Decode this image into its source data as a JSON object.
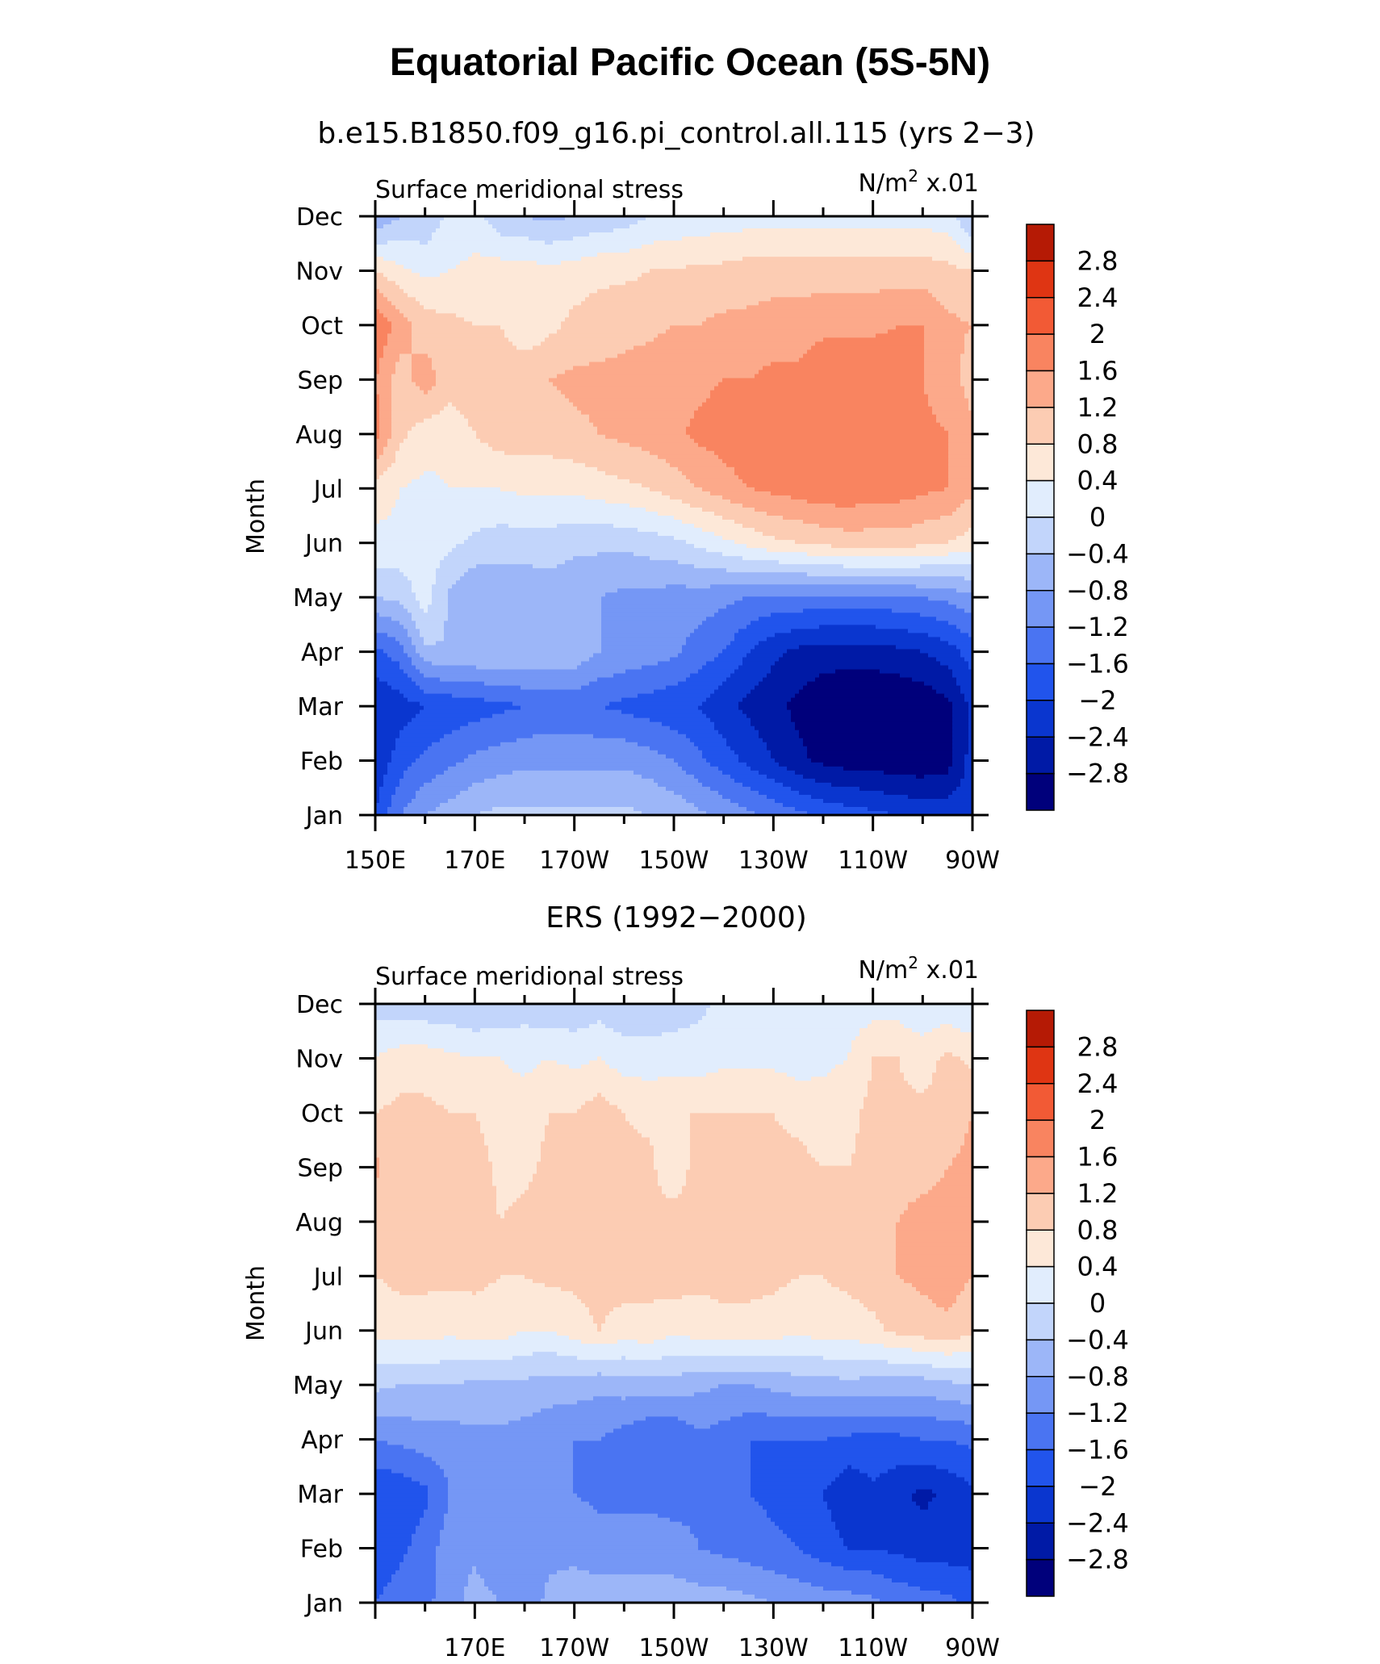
{
  "title": "Equatorial Pacific Ocean (5S-5N)",
  "colorbar": {
    "labels": [
      "2.8",
      "2.4",
      "2",
      "1.6",
      "1.2",
      "0.8",
      "0.4",
      "0",
      "−0.4",
      "−0.8",
      "−1.2",
      "−1.6",
      "−2",
      "−2.4",
      "−2.8"
    ],
    "levels": [
      -2.8,
      -2.4,
      -2.0,
      -1.6,
      -1.2,
      -0.8,
      -0.4,
      0,
      0.4,
      0.8,
      1.2,
      1.6,
      2.0,
      2.4,
      2.8
    ],
    "colors": [
      "#00007b",
      "#001aa6",
      "#0a36cf",
      "#2154ec",
      "#4a74f2",
      "#7597f5",
      "#9cb6f8",
      "#c2d5fb",
      "#e1edfd",
      "#fde8d8",
      "#fcccb3",
      "#fca98a",
      "#f98460",
      "#f25a35",
      "#df3513",
      "#b51a05"
    ]
  },
  "panels": [
    {
      "subtitle": "b.e15.B1850.f09_g16.pi_control.all.115 (yrs 2−3)",
      "left_label": "Surface meridional stress",
      "right_label": "N/m",
      "right_sup": "2",
      "right_suffix": " x.01"
    },
    {
      "subtitle": "ERS (1992−2000)",
      "left_label": "Surface meridional stress",
      "right_label": "N/m",
      "right_sup": "2",
      "right_suffix": " x.01"
    }
  ],
  "chart_data": [
    {
      "type": "heatmap",
      "title": "b.e15.B1850.f09_g16.pi_control.all.115 (yrs 2−3)",
      "ylabel": "Month",
      "xlabel": "",
      "x_ticklabels": [
        "150E",
        "170E",
        "170W",
        "150W",
        "130W",
        "110W",
        "90W"
      ],
      "y_ticklabels": [
        "Jan",
        "Feb",
        "Mar",
        "Apr",
        "May",
        "Jun",
        "Jul",
        "Aug",
        "Sep",
        "Oct",
        "Nov",
        "Dec"
      ],
      "x_range": [
        150,
        270
      ],
      "x": [
        150,
        155,
        160,
        165,
        170,
        175,
        180,
        185,
        190,
        195,
        200,
        205,
        210,
        215,
        220,
        225,
        230,
        235,
        240,
        245,
        250,
        255,
        260,
        265,
        270
      ],
      "y": [
        "Jan",
        "Feb",
        "Mar",
        "Apr",
        "May",
        "Jun",
        "Jul",
        "Aug",
        "Sep",
        "Oct",
        "Nov",
        "Dec"
      ],
      "units": "N/m2 x.01",
      "z": [
        [
          -2.0,
          -1.2,
          -0.8,
          -0.6,
          -0.4,
          -0.3,
          -0.3,
          -0.3,
          -0.3,
          -0.3,
          -0.3,
          -0.4,
          -0.5,
          -0.7,
          -0.9,
          -1.1,
          -1.3,
          -1.5,
          -1.7,
          -1.8,
          -1.9,
          -2.0,
          -2.1,
          -2.1,
          -2.2
        ],
        [
          -2.3,
          -1.8,
          -1.5,
          -1.3,
          -1.1,
          -1.0,
          -0.9,
          -0.9,
          -0.9,
          -0.9,
          -0.9,
          -1.0,
          -1.2,
          -1.5,
          -1.8,
          -2.1,
          -2.4,
          -2.7,
          -2.9,
          -3.0,
          -3.0,
          -3.1,
          -3.1,
          -3.0,
          -2.2
        ],
        [
          -2.4,
          -2.2,
          -2.0,
          -1.9,
          -1.8,
          -1.7,
          -1.6,
          -1.5,
          -1.5,
          -1.6,
          -1.7,
          -1.8,
          -1.9,
          -2.0,
          -2.3,
          -2.5,
          -2.7,
          -2.9,
          -3.1,
          -3.2,
          -3.2,
          -3.2,
          -3.1,
          -2.9,
          -2.3
        ],
        [
          -1.7,
          -1.4,
          -0.5,
          -0.4,
          -0.4,
          -0.4,
          -0.4,
          -0.4,
          -0.5,
          -0.8,
          -0.9,
          -1.0,
          -1.1,
          -1.4,
          -1.6,
          -2.0,
          -2.3,
          -2.5,
          -2.6,
          -2.6,
          -2.6,
          -2.5,
          -2.4,
          -2.2,
          -1.8
        ],
        [
          -0.4,
          -0.3,
          0.2,
          -0.5,
          -0.8,
          -0.7,
          -0.7,
          -0.6,
          -0.7,
          -0.8,
          -0.9,
          -0.9,
          -1.0,
          -1.0,
          -1.1,
          -1.2,
          -1.3,
          -1.3,
          -1.3,
          -1.3,
          -1.3,
          -1.3,
          -1.2,
          -1.1,
          -0.9
        ],
        [
          0.3,
          0.3,
          0.2,
          0.1,
          -0.1,
          -0.2,
          -0.2,
          -0.2,
          -0.3,
          -0.3,
          -0.3,
          -0.2,
          -0.1,
          0.1,
          0.3,
          0.5,
          0.7,
          0.8,
          0.9,
          1.0,
          1.0,
          1.0,
          0.9,
          0.8,
          0.6
        ],
        [
          0.6,
          0.4,
          0.3,
          0.4,
          0.4,
          0.4,
          0.5,
          0.5,
          0.5,
          0.6,
          0.7,
          0.8,
          1.0,
          1.2,
          1.4,
          1.6,
          1.7,
          1.8,
          1.9,
          1.9,
          1.8,
          1.8,
          1.7,
          1.6,
          1.3
        ],
        [
          1.8,
          0.9,
          0.6,
          0.5,
          0.8,
          1.0,
          1.0,
          1.0,
          1.1,
          1.2,
          1.3,
          1.4,
          1.5,
          1.7,
          1.8,
          1.9,
          1.9,
          1.9,
          1.8,
          1.8,
          1.7,
          1.7,
          1.7,
          1.6,
          1.3
        ],
        [
          1.6,
          1.0,
          1.4,
          1.0,
          1.1,
          1.2,
          1.2,
          1.2,
          1.3,
          1.3,
          1.3,
          1.4,
          1.5,
          1.5,
          1.6,
          1.6,
          1.7,
          1.7,
          1.9,
          2.0,
          2.0,
          1.8,
          1.6,
          1.4,
          1.0
        ],
        [
          2.0,
          1.4,
          1.0,
          0.9,
          0.8,
          0.8,
          0.4,
          0.7,
          0.9,
          1.0,
          1.1,
          1.1,
          1.2,
          1.2,
          1.3,
          1.3,
          1.4,
          1.4,
          1.5,
          1.5,
          1.5,
          1.6,
          1.6,
          1.3,
          1.2
        ],
        [
          0.8,
          0.5,
          0.3,
          0.4,
          0.5,
          0.6,
          0.6,
          0.5,
          0.6,
          0.7,
          0.7,
          0.8,
          0.8,
          0.9,
          0.9,
          1.0,
          1.0,
          1.0,
          1.0,
          1.0,
          1.0,
          1.0,
          1.0,
          0.9,
          0.8
        ],
        [
          -0.8,
          -0.4,
          -0.3,
          0.1,
          0.2,
          -0.3,
          -0.4,
          -0.5,
          -0.4,
          -0.3,
          -0.2,
          0.0,
          0.1,
          0.1,
          0.2,
          0.2,
          0.2,
          0.2,
          0.2,
          0.2,
          0.2,
          0.2,
          0.2,
          0.2,
          -0.5
        ]
      ]
    },
    {
      "type": "heatmap",
      "title": "ERS (1992−2000)",
      "ylabel": "Month",
      "xlabel": "",
      "x_ticklabels": [
        "170E",
        "170W",
        "150W",
        "130W",
        "110W",
        "90W"
      ],
      "y_ticklabels": [
        "Jan",
        "Feb",
        "Mar",
        "Apr",
        "May",
        "Jun",
        "Jul",
        "Aug",
        "Sep",
        "Oct",
        "Nov",
        "Dec"
      ],
      "x_range": [
        150,
        270
      ],
      "x": [
        150,
        155,
        160,
        165,
        170,
        175,
        180,
        185,
        190,
        195,
        200,
        205,
        210,
        215,
        220,
        225,
        230,
        235,
        240,
        245,
        250,
        255,
        260,
        265,
        270
      ],
      "y": [
        "Jan",
        "Feb",
        "Mar",
        "Apr",
        "May",
        "Jun",
        "Jul",
        "Aug",
        "Sep",
        "Oct",
        "Nov",
        "Dec"
      ],
      "units": "N/m2 x.01",
      "z": [
        [
          -1.6,
          -1.4,
          -1.3,
          -1.0,
          -0.6,
          -0.8,
          -1.0,
          -0.7,
          -0.6,
          -0.6,
          -0.6,
          -0.6,
          -0.6,
          -0.6,
          -0.6,
          -0.7,
          -0.8,
          -0.9,
          -1.0,
          -1.0,
          -1.1,
          -1.3,
          -1.4,
          -1.5,
          -1.7
        ],
        [
          -1.9,
          -1.7,
          -1.4,
          -1.0,
          -0.9,
          -1.2,
          -1.1,
          -0.9,
          -0.9,
          -1.0,
          -1.0,
          -1.0,
          -1.0,
          -1.2,
          -1.3,
          -1.4,
          -1.5,
          -1.6,
          -1.8,
          -2.0,
          -2.0,
          -2.1,
          -2.2,
          -2.2,
          -2.2
        ],
        [
          -2.0,
          -1.9,
          -1.7,
          -1.2,
          -0.8,
          -0.9,
          -1.2,
          -1.2,
          -1.2,
          -1.3,
          -1.3,
          -1.3,
          -1.4,
          -1.3,
          -1.3,
          -1.6,
          -1.7,
          -1.8,
          -2.0,
          -2.3,
          -2.1,
          -2.3,
          -2.5,
          -2.3,
          -2.1
        ],
        [
          -1.2,
          -1.1,
          -1.0,
          -1.0,
          -0.9,
          -0.9,
          -1.0,
          -1.1,
          -1.2,
          -1.2,
          -1.4,
          -1.6,
          -1.6,
          -1.3,
          -1.4,
          -1.6,
          -1.6,
          -1.6,
          -1.6,
          -1.7,
          -1.7,
          -1.7,
          -1.6,
          -1.6,
          -1.5
        ],
        [
          -0.3,
          -0.4,
          -0.4,
          -0.4,
          -0.5,
          -0.5,
          -0.5,
          -0.6,
          -0.6,
          -0.7,
          -0.6,
          -0.6,
          -0.6,
          -0.7,
          -0.8,
          -0.8,
          -0.7,
          -0.6,
          -0.6,
          -0.5,
          -0.6,
          -0.6,
          -0.6,
          -0.5,
          -0.4
        ],
        [
          0.5,
          0.6,
          0.6,
          0.5,
          0.6,
          0.6,
          0.4,
          0.4,
          0.6,
          0.8,
          0.6,
          0.7,
          0.5,
          0.6,
          0.7,
          0.7,
          0.6,
          0.5,
          0.6,
          0.6,
          0.7,
          0.9,
          1.0,
          1.1,
          0.9
        ],
        [
          0.8,
          0.9,
          0.9,
          0.9,
          0.9,
          0.8,
          0.8,
          0.9,
          0.9,
          1.0,
          1.0,
          0.9,
          1.0,
          0.9,
          0.9,
          0.9,
          0.9,
          0.8,
          0.8,
          0.9,
          1.0,
          1.2,
          1.3,
          1.4,
          1.2
        ],
        [
          0.9,
          1.0,
          0.9,
          1.0,
          1.1,
          0.8,
          0.9,
          1.0,
          1.0,
          1.1,
          1.1,
          0.9,
          1.0,
          1.0,
          0.9,
          1.0,
          0.9,
          0.9,
          0.8,
          0.8,
          1.1,
          1.2,
          1.4,
          1.4,
          1.3
        ],
        [
          1.3,
          0.9,
          0.8,
          0.9,
          1.0,
          0.7,
          0.7,
          0.9,
          1.0,
          1.1,
          0.9,
          0.9,
          0.5,
          1.0,
          1.0,
          1.0,
          0.9,
          0.9,
          0.8,
          0.8,
          0.9,
          1.0,
          1.0,
          1.2,
          1.3
        ],
        [
          0.8,
          0.9,
          0.9,
          0.8,
          0.8,
          0.6,
          0.6,
          0.8,
          0.8,
          1.0,
          0.8,
          0.7,
          0.8,
          0.8,
          0.8,
          0.8,
          0.8,
          0.7,
          0.6,
          0.7,
          0.9,
          0.9,
          0.9,
          1.0,
          1.2
        ],
        [
          0.4,
          0.6,
          0.6,
          0.5,
          0.4,
          0.4,
          0.3,
          0.4,
          0.3,
          0.4,
          0.2,
          0.2,
          0.2,
          0.2,
          0.3,
          0.3,
          0.3,
          0.2,
          0.3,
          0.4,
          0.8,
          0.8,
          0.6,
          0.9,
          0.7
        ],
        [
          -0.2,
          -0.3,
          -0.3,
          -0.3,
          -0.4,
          -0.3,
          -0.2,
          -0.3,
          -0.3,
          -0.2,
          -0.3,
          -0.3,
          -0.2,
          -0.1,
          0.1,
          0.2,
          0.3,
          0.2,
          0.1,
          0.2,
          0.2,
          0.2,
          0.1,
          0.1,
          0.0
        ]
      ]
    }
  ]
}
